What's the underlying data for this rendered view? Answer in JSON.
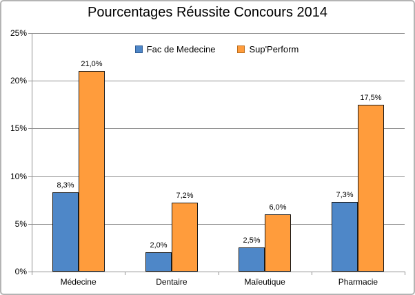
{
  "chart_data": {
    "type": "bar",
    "title": "Pourcentages Réussite Concours 2014",
    "categories": [
      "Médecine",
      "Dentaire",
      "Maïeutique",
      "Pharmacie"
    ],
    "series": [
      {
        "name": "Fac de Medecine",
        "color": "#4E87C8",
        "swatch_border": "#2F5C94",
        "values": [
          8.3,
          2.0,
          2.5,
          7.3
        ],
        "labels": [
          "8,3%",
          "2,0%",
          "2,5%",
          "7,3%"
        ]
      },
      {
        "name": "Sup'Perform",
        "color": "#FF9C3C",
        "swatch_border": "#BA6D1C",
        "values": [
          21.0,
          7.2,
          6.0,
          17.5
        ],
        "labels": [
          "21,0%",
          "7,2%",
          "6,0%",
          "17,5%"
        ]
      }
    ],
    "y_ticks": [
      {
        "value": 0,
        "label": "0%"
      },
      {
        "value": 5,
        "label": "5%"
      },
      {
        "value": 10,
        "label": "10%"
      },
      {
        "value": 15,
        "label": "15%"
      },
      {
        "value": 20,
        "label": "20%"
      },
      {
        "value": 25,
        "label": "25%"
      }
    ],
    "ylim": [
      0,
      25
    ],
    "xlabel": "",
    "ylabel": "",
    "grid": true,
    "legend_position": "top",
    "colors": {
      "bar_border": "#1A1A1A",
      "grid": "#8F8F8F",
      "axis": "#8F8F8F",
      "text": "#000000",
      "frame_border": "#B4B4B4",
      "background": "#FFFFFF"
    }
  }
}
